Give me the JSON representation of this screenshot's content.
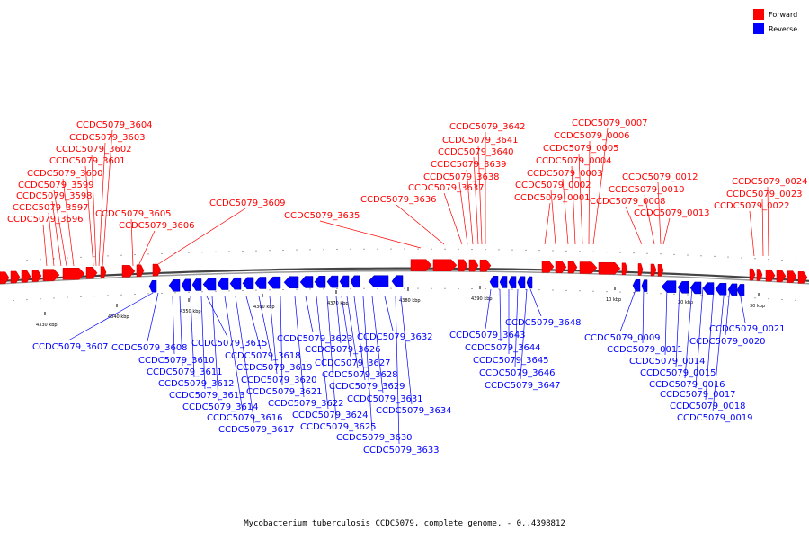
{
  "legend": [
    {
      "label": "Forward",
      "color": "#ff0000"
    },
    {
      "label": "Reverse",
      "color": "#0000ff"
    }
  ],
  "footer": "Mycobacterium tuberculosis CCDC5079, complete genome. - 0..4398812",
  "scale_labels": [
    "4330 kbp",
    "4340 kbp",
    "4350 kbp",
    "4360 kbp",
    "4370 kbp",
    "4380 kbp",
    "4390 kbp",
    "10 kbp",
    "20 kbp",
    "30 kbp"
  ],
  "forward_genes": [
    "CCDC5079_3604",
    "CCDC5079_3603",
    "CCDC5079_3602",
    "CCDC5079_3601",
    "CCDC5079_3600",
    "CCDC5079_3599",
    "CCDC5079_3598",
    "CCDC5079_3597",
    "CCDC5079_3596",
    "CCDC5079_3605",
    "CCDC5079_3606",
    "CCDC5079_3609",
    "CCDC5079_3635",
    "CCDC5079_3636",
    "CCDC5079_3637",
    "CCDC5079_3638",
    "CCDC5079_3639",
    "CCDC5079_3640",
    "CCDC5079_3641",
    "CCDC5079_3642",
    "CCDC5079_0007",
    "CCDC5079_0006",
    "CCDC5079_0005",
    "CCDC5079_0004",
    "CCDC5079_0003",
    "CCDC5079_0002",
    "CCDC5079_0001",
    "CCDC5079_0012",
    "CCDC5079_0010",
    "CCDC5079_0008",
    "CCDC5079_0013",
    "CCDC5079_0024",
    "CCDC5079_0023",
    "CCDC5079_0022"
  ],
  "reverse_genes": [
    "CCDC5079_3607",
    "CCDC5079_3608",
    "CCDC5079_3610",
    "CCDC5079_3611",
    "CCDC5079_3612",
    "CCDC5079_3613",
    "CCDC5079_3614",
    "CCDC5079_3616",
    "CCDC5079_3617",
    "CCDC5079_3615",
    "CCDC5079_3618",
    "CCDC5079_3619",
    "CCDC5079_3620",
    "CCDC5079_3621",
    "CCDC5079_3622",
    "CCDC5079_3623",
    "CCDC5079_3624",
    "CCDC5079_3625",
    "CCDC5079_3626",
    "CCDC5079_3627",
    "CCDC5079_3628",
    "CCDC5079_3629",
    "CCDC5079_3630",
    "CCDC5079_3631",
    "CCDC5079_3632",
    "CCDC5079_3633",
    "CCDC5079_3634",
    "CCDC5079_3643",
    "CCDC5079_3644",
    "CCDC5079_3645",
    "CCDC5079_3646",
    "CCDC5079_3647",
    "CCDC5079_3648",
    "CCDC5079_0009",
    "CCDC5079_0011",
    "CCDC5079_0014",
    "CCDC5079_0015",
    "CCDC5079_0016",
    "CCDC5079_0017",
    "CCDC5079_0018",
    "CCDC5079_0019",
    "CCDC5079_0020",
    "CCDC5079_0021"
  ]
}
